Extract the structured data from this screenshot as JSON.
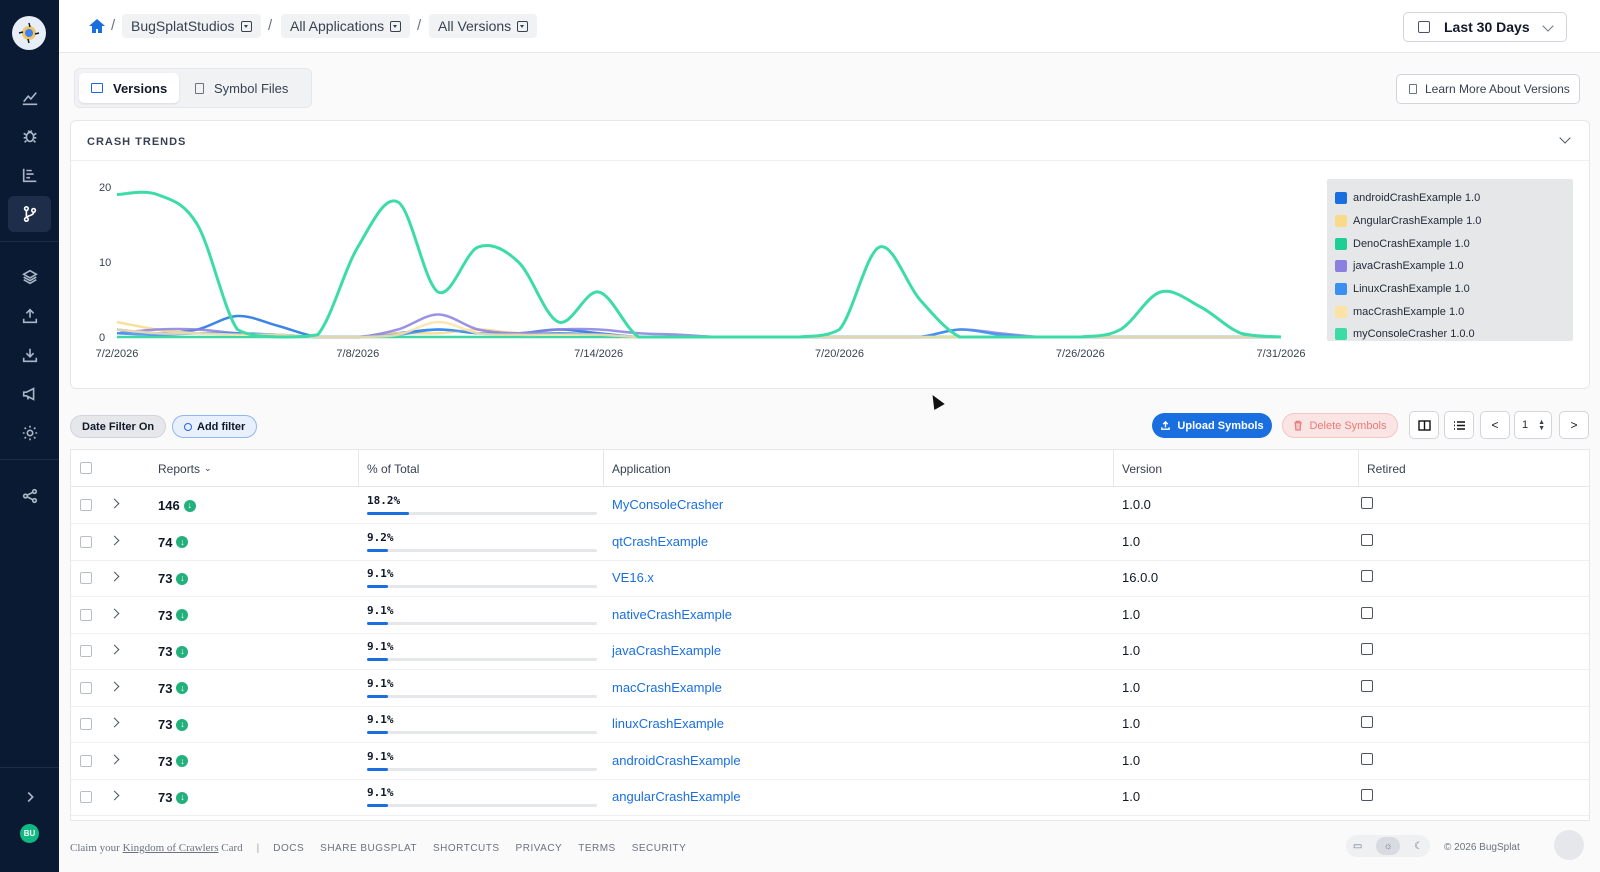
{
  "breadcrumb": {
    "org": "BugSplatStudios",
    "apps": "All Applications",
    "versions": "All Versions",
    "separator": "/"
  },
  "date_range": "Last 30 Days",
  "tabs": [
    {
      "label": "Versions",
      "active": true
    },
    {
      "label": "Symbol Files",
      "active": false
    }
  ],
  "learn_more": "Learn More About Versions",
  "chart_panel": {
    "title": "CRASH TRENDS"
  },
  "chart_data": {
    "type": "line",
    "x": [
      "7/2/2026",
      "7/3/2026",
      "7/4/2026",
      "7/5/2026",
      "7/6/2026",
      "7/7/2026",
      "7/8/2026",
      "7/9/2026",
      "7/10/2026",
      "7/11/2026",
      "7/12/2026",
      "7/13/2026",
      "7/14/2026",
      "7/15/2026",
      "7/16/2026",
      "7/17/2026",
      "7/18/2026",
      "7/19/2026",
      "7/20/2026",
      "7/21/2026",
      "7/22/2026",
      "7/23/2026",
      "7/24/2026",
      "7/25/2026",
      "7/26/2026",
      "7/27/2026",
      "7/28/2026",
      "7/29/2026",
      "7/30/2026",
      "7/31/2026"
    ],
    "xticks": [
      "7/2/2026",
      "7/8/2026",
      "7/14/2026",
      "7/20/2026",
      "7/26/2026",
      "7/31/2026"
    ],
    "yticks": [
      0,
      10,
      20
    ],
    "ylim": [
      0,
      20
    ],
    "series": [
      {
        "name": "androidCrashExample 1.0",
        "color": "#1a6fe0",
        "values": [
          1,
          0.5,
          1,
          2.8,
          1.5,
          0,
          0,
          0.5,
          1,
          0.5,
          0.5,
          1,
          0.5,
          0,
          0,
          0,
          0,
          0,
          0,
          0,
          0,
          0,
          0,
          0,
          0,
          0,
          0,
          0,
          0,
          0
        ]
      },
      {
        "name": "AngularCrashExample 1.0",
        "color": "#f9d98a",
        "values": [
          2,
          1,
          0.5,
          0.5,
          0.3,
          0,
          0,
          0.5,
          0.5,
          1,
          0.5,
          0.5,
          0.3,
          0,
          0,
          0,
          0,
          0,
          0,
          0,
          0,
          0,
          0,
          0,
          0,
          0,
          0,
          0,
          0,
          0
        ]
      },
      {
        "name": "DenoCrashExample 1.0",
        "color": "#1dcf95",
        "values": [
          0,
          0,
          0,
          0,
          0,
          0,
          0,
          0,
          0,
          0,
          0,
          0,
          0,
          0,
          0,
          0,
          0,
          0,
          0,
          0,
          0,
          0,
          0,
          0,
          0,
          0,
          0,
          0,
          0,
          0
        ]
      },
      {
        "name": "javaCrashExample 1.0",
        "color": "#8b7fe0",
        "values": [
          0.5,
          1,
          1,
          0.5,
          0.3,
          0,
          0,
          1,
          3,
          1,
          0.5,
          1,
          1,
          0.5,
          0.3,
          0,
          0,
          0,
          0,
          0,
          0,
          1,
          0.5,
          0,
          0,
          0,
          0,
          0,
          0,
          0
        ]
      },
      {
        "name": "LinuxCrashExample 1.0",
        "color": "#3b8ff0",
        "values": [
          0.5,
          0.3,
          0.5,
          0.5,
          0.3,
          0,
          0,
          0.3,
          1,
          0.5,
          0.3,
          0.5,
          0.3,
          0,
          0,
          0,
          0,
          0,
          0,
          0,
          0,
          1,
          0.3,
          0,
          0,
          0,
          0,
          0,
          0,
          0
        ]
      },
      {
        "name": "macCrashExample 1.0",
        "color": "#fbe3a6",
        "values": [
          1,
          0.5,
          0.5,
          0.3,
          0.3,
          0,
          0,
          0.3,
          2,
          0.5,
          0.3,
          0.3,
          0.3,
          0,
          0,
          0,
          0,
          0,
          0,
          0,
          0,
          0,
          0,
          0,
          0,
          0,
          0,
          0,
          0,
          0
        ]
      },
      {
        "name": "myConsoleCrasher 1.0.0",
        "color": "#3ddca6",
        "values": [
          19,
          19,
          15,
          1,
          0,
          0.3,
          12,
          18,
          6,
          12,
          10,
          2,
          6,
          0,
          0,
          0,
          0,
          0,
          1,
          12,
          5,
          0,
          0,
          0,
          0,
          1,
          6,
          4,
          0.5,
          0
        ]
      }
    ]
  },
  "filters": {
    "date_filter": "Date Filter On",
    "add_filter": "Add filter"
  },
  "actions": {
    "upload": "Upload Symbols",
    "delete": "Delete Symbols",
    "prev": "<",
    "next": ">",
    "page": "1"
  },
  "table": {
    "headers": {
      "reports": "Reports",
      "percent": "% of Total",
      "application": "Application",
      "version": "Version",
      "retired": "Retired"
    },
    "rows": [
      {
        "reports": "146",
        "percent": "18.2%",
        "pct_value": 18.2,
        "application": "MyConsoleCrasher",
        "version": "1.0.0"
      },
      {
        "reports": "74",
        "percent": "9.2%",
        "pct_value": 9.2,
        "application": "qtCrashExample",
        "version": "1.0"
      },
      {
        "reports": "73",
        "percent": "9.1%",
        "pct_value": 9.1,
        "application": "VE16.x",
        "version": "16.0.0"
      },
      {
        "reports": "73",
        "percent": "9.1%",
        "pct_value": 9.1,
        "application": "nativeCrashExample",
        "version": "1.0"
      },
      {
        "reports": "73",
        "percent": "9.1%",
        "pct_value": 9.1,
        "application": "javaCrashExample",
        "version": "1.0"
      },
      {
        "reports": "73",
        "percent": "9.1%",
        "pct_value": 9.1,
        "application": "macCrashExample",
        "version": "1.0"
      },
      {
        "reports": "73",
        "percent": "9.1%",
        "pct_value": 9.1,
        "application": "linuxCrashExample",
        "version": "1.0"
      },
      {
        "reports": "73",
        "percent": "9.1%",
        "pct_value": 9.1,
        "application": "androidCrashExample",
        "version": "1.0"
      },
      {
        "reports": "73",
        "percent": "9.1%",
        "pct_value": 9.1,
        "application": "angularCrashExample",
        "version": "1.0"
      }
    ]
  },
  "footer": {
    "claim_prefix": "Claim your",
    "claim_link": "Kingdom of Crawlers",
    "claim_suffix": "Card",
    "links": [
      "DOCS",
      "SHARE BUGSPLAT",
      "SHORTCUTS",
      "PRIVACY",
      "TERMS",
      "SECURITY"
    ],
    "copyright": "© 2026 BugSplat"
  },
  "sidebar_avatar": "BU"
}
